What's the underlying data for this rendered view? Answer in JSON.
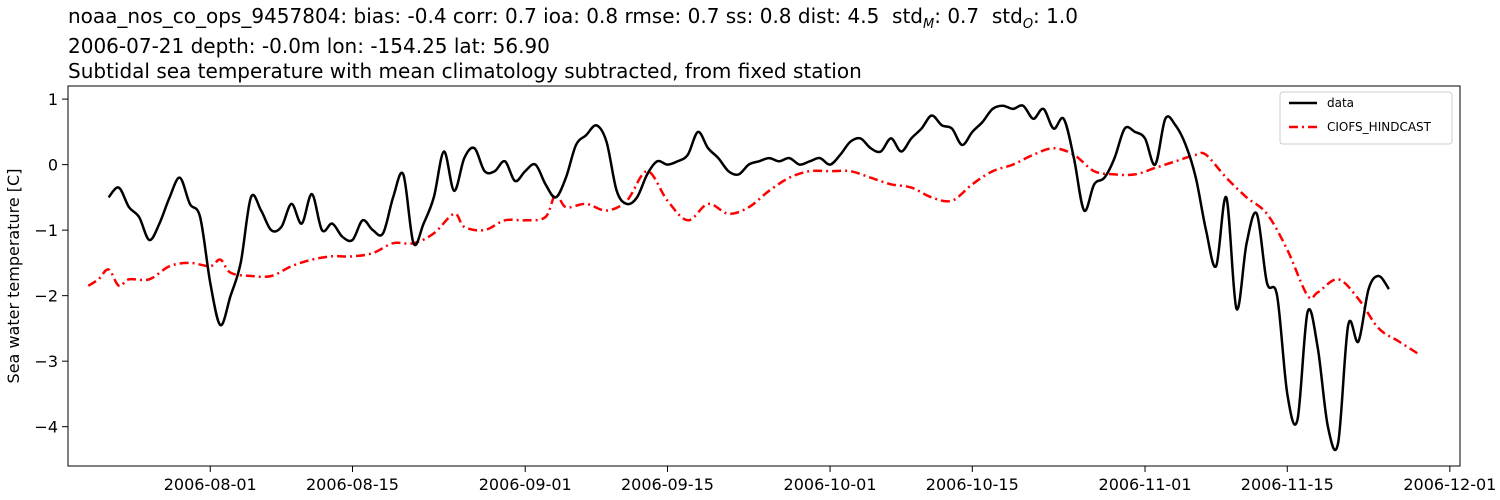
{
  "chart_data": {
    "type": "line",
    "title_lines": [
      "noaa_nos_co_ops_9457804: bias: -0.4  corr: 0.7  ioa: 0.8  rmse: 0.7  ss: 0.8  dist: 4.5",
      "2006-07-21 depth: -0.0m lon: -154.25 lat: 56.90",
      "Subtidal sea temperature with mean climatology subtracted, from fixed station"
    ],
    "title_std_m": {
      "prefix": "std",
      "sub": "M",
      "value": ": 0.7"
    },
    "title_std_o": {
      "prefix": "std",
      "sub": "O",
      "value": ": 1.0"
    },
    "xlabel": "",
    "ylabel": "Sea water temperature [C]",
    "xlim": [
      "2006-07-18",
      "2006-12-02"
    ],
    "ylim": [
      -4.6,
      1.2
    ],
    "x_ticks": [
      "2006-08-01",
      "2006-08-15",
      "2006-09-01",
      "2006-09-15",
      "2006-10-01",
      "2006-10-15",
      "2006-11-01",
      "2006-11-15",
      "2006-12-01"
    ],
    "y_ticks": [
      1,
      0,
      -1,
      -2,
      -3,
      -4
    ],
    "y_tick_labels": [
      "1",
      "0",
      "−1",
      "−2",
      "−3",
      "−4"
    ],
    "grid": false,
    "legend_position": "top-right",
    "series": [
      {
        "name": "data",
        "color": "#000000",
        "style": "solid",
        "points": [
          [
            "2006-07-22",
            -0.5
          ],
          [
            "2006-07-23",
            -0.35
          ],
          [
            "2006-07-24",
            -0.65
          ],
          [
            "2006-07-25",
            -0.8
          ],
          [
            "2006-07-26",
            -1.15
          ],
          [
            "2006-07-27",
            -0.9
          ],
          [
            "2006-07-28",
            -0.5
          ],
          [
            "2006-07-29",
            -0.2
          ],
          [
            "2006-07-30",
            -0.6
          ],
          [
            "2006-07-31",
            -0.8
          ],
          [
            "2006-08-01",
            -1.8
          ],
          [
            "2006-08-02",
            -2.45
          ],
          [
            "2006-08-03",
            -2.0
          ],
          [
            "2006-08-04",
            -1.5
          ],
          [
            "2006-08-05",
            -0.5
          ],
          [
            "2006-08-06",
            -0.7
          ],
          [
            "2006-08-07",
            -1.0
          ],
          [
            "2006-08-08",
            -0.95
          ],
          [
            "2006-08-09",
            -0.6
          ],
          [
            "2006-08-10",
            -0.9
          ],
          [
            "2006-08-11",
            -0.45
          ],
          [
            "2006-08-12",
            -1.0
          ],
          [
            "2006-08-13",
            -0.9
          ],
          [
            "2006-08-14",
            -1.1
          ],
          [
            "2006-08-15",
            -1.15
          ],
          [
            "2006-08-16",
            -0.85
          ],
          [
            "2006-08-17",
            -1.0
          ],
          [
            "2006-08-18",
            -1.05
          ],
          [
            "2006-08-19",
            -0.5
          ],
          [
            "2006-08-20",
            -0.15
          ],
          [
            "2006-08-21",
            -1.2
          ],
          [
            "2006-08-22",
            -0.9
          ],
          [
            "2006-08-23",
            -0.5
          ],
          [
            "2006-08-24",
            0.2
          ],
          [
            "2006-08-25",
            -0.4
          ],
          [
            "2006-08-26",
            0.1
          ],
          [
            "2006-08-27",
            0.25
          ],
          [
            "2006-08-28",
            -0.1
          ],
          [
            "2006-08-29",
            -0.1
          ],
          [
            "2006-08-30",
            0.05
          ],
          [
            "2006-08-31",
            -0.25
          ],
          [
            "2006-09-01",
            -0.1
          ],
          [
            "2006-09-02",
            0.0
          ],
          [
            "2006-09-03",
            -0.3
          ],
          [
            "2006-09-04",
            -0.5
          ],
          [
            "2006-09-05",
            -0.2
          ],
          [
            "2006-09-06",
            0.3
          ],
          [
            "2006-09-07",
            0.45
          ],
          [
            "2006-09-08",
            0.6
          ],
          [
            "2006-09-09",
            0.35
          ],
          [
            "2006-09-10",
            -0.4
          ],
          [
            "2006-09-11",
            -0.6
          ],
          [
            "2006-09-12",
            -0.5
          ],
          [
            "2006-09-13",
            -0.15
          ],
          [
            "2006-09-14",
            0.05
          ],
          [
            "2006-09-15",
            0.0
          ],
          [
            "2006-09-16",
            0.05
          ],
          [
            "2006-09-17",
            0.15
          ],
          [
            "2006-09-18",
            0.5
          ],
          [
            "2006-09-19",
            0.25
          ],
          [
            "2006-09-20",
            0.1
          ],
          [
            "2006-09-21",
            -0.1
          ],
          [
            "2006-09-22",
            -0.15
          ],
          [
            "2006-09-23",
            0.0
          ],
          [
            "2006-09-24",
            0.05
          ],
          [
            "2006-09-25",
            0.1
          ],
          [
            "2006-09-26",
            0.05
          ],
          [
            "2006-09-27",
            0.1
          ],
          [
            "2006-09-28",
            0.0
          ],
          [
            "2006-09-29",
            0.05
          ],
          [
            "2006-09-30",
            0.1
          ],
          [
            "2006-10-01",
            0.0
          ],
          [
            "2006-10-02",
            0.15
          ],
          [
            "2006-10-03",
            0.35
          ],
          [
            "2006-10-04",
            0.4
          ],
          [
            "2006-10-05",
            0.25
          ],
          [
            "2006-10-06",
            0.2
          ],
          [
            "2006-10-07",
            0.4
          ],
          [
            "2006-10-08",
            0.2
          ],
          [
            "2006-10-09",
            0.4
          ],
          [
            "2006-10-10",
            0.55
          ],
          [
            "2006-10-11",
            0.75
          ],
          [
            "2006-10-12",
            0.6
          ],
          [
            "2006-10-13",
            0.55
          ],
          [
            "2006-10-14",
            0.3
          ],
          [
            "2006-10-15",
            0.5
          ],
          [
            "2006-10-16",
            0.65
          ],
          [
            "2006-10-17",
            0.85
          ],
          [
            "2006-10-18",
            0.9
          ],
          [
            "2006-10-19",
            0.85
          ],
          [
            "2006-10-20",
            0.9
          ],
          [
            "2006-10-21",
            0.7
          ],
          [
            "2006-10-22",
            0.85
          ],
          [
            "2006-10-23",
            0.55
          ],
          [
            "2006-10-24",
            0.7
          ],
          [
            "2006-10-25",
            0.1
          ],
          [
            "2006-10-26",
            -0.7
          ],
          [
            "2006-10-27",
            -0.3
          ],
          [
            "2006-10-28",
            -0.2
          ],
          [
            "2006-10-29",
            0.1
          ],
          [
            "2006-10-30",
            0.55
          ],
          [
            "2006-10-31",
            0.5
          ],
          [
            "2006-11-01",
            0.4
          ],
          [
            "2006-11-02",
            0.0
          ],
          [
            "2006-11-03",
            0.7
          ],
          [
            "2006-11-04",
            0.6
          ],
          [
            "2006-11-05",
            0.3
          ],
          [
            "2006-11-06",
            -0.2
          ],
          [
            "2006-11-07",
            -1.0
          ],
          [
            "2006-11-08",
            -1.55
          ],
          [
            "2006-11-09",
            -0.5
          ],
          [
            "2006-11-10",
            -2.2
          ],
          [
            "2006-11-11",
            -1.2
          ],
          [
            "2006-11-12",
            -0.75
          ],
          [
            "2006-11-13",
            -1.8
          ],
          [
            "2006-11-14",
            -2.0
          ],
          [
            "2006-11-15",
            -3.5
          ],
          [
            "2006-11-16",
            -3.9
          ],
          [
            "2006-11-17",
            -2.25
          ],
          [
            "2006-11-18",
            -2.8
          ],
          [
            "2006-11-19",
            -4.0
          ],
          [
            "2006-11-20",
            -4.25
          ],
          [
            "2006-11-21",
            -2.45
          ],
          [
            "2006-11-22",
            -2.7
          ],
          [
            "2006-11-23",
            -1.9
          ],
          [
            "2006-11-24",
            -1.7
          ],
          [
            "2006-11-25",
            -1.9
          ]
        ]
      },
      {
        "name": "CIOFS_HINDCAST",
        "color": "#ff0000",
        "style": "dashdot",
        "points": [
          [
            "2006-07-20",
            -1.85
          ],
          [
            "2006-07-21",
            -1.75
          ],
          [
            "2006-07-22",
            -1.6
          ],
          [
            "2006-07-23",
            -1.85
          ],
          [
            "2006-07-24",
            -1.75
          ],
          [
            "2006-07-26",
            -1.75
          ],
          [
            "2006-07-28",
            -1.55
          ],
          [
            "2006-07-30",
            -1.5
          ],
          [
            "2006-08-01",
            -1.55
          ],
          [
            "2006-08-02",
            -1.45
          ],
          [
            "2006-08-03",
            -1.65
          ],
          [
            "2006-08-05",
            -1.7
          ],
          [
            "2006-08-07",
            -1.7
          ],
          [
            "2006-08-09",
            -1.55
          ],
          [
            "2006-08-11",
            -1.45
          ],
          [
            "2006-08-13",
            -1.4
          ],
          [
            "2006-08-15",
            -1.4
          ],
          [
            "2006-08-17",
            -1.35
          ],
          [
            "2006-08-19",
            -1.2
          ],
          [
            "2006-08-21",
            -1.2
          ],
          [
            "2006-08-23",
            -1.05
          ],
          [
            "2006-08-25",
            -0.75
          ],
          [
            "2006-08-26",
            -0.95
          ],
          [
            "2006-08-28",
            -1.0
          ],
          [
            "2006-08-30",
            -0.85
          ],
          [
            "2006-09-01",
            -0.85
          ],
          [
            "2006-09-03",
            -0.8
          ],
          [
            "2006-09-04",
            -0.45
          ],
          [
            "2006-09-05",
            -0.65
          ],
          [
            "2006-09-07",
            -0.6
          ],
          [
            "2006-09-09",
            -0.7
          ],
          [
            "2006-09-11",
            -0.55
          ],
          [
            "2006-09-13",
            -0.1
          ],
          [
            "2006-09-15",
            -0.55
          ],
          [
            "2006-09-17",
            -0.85
          ],
          [
            "2006-09-19",
            -0.6
          ],
          [
            "2006-09-21",
            -0.75
          ],
          [
            "2006-09-23",
            -0.65
          ],
          [
            "2006-09-25",
            -0.4
          ],
          [
            "2006-09-27",
            -0.2
          ],
          [
            "2006-09-29",
            -0.1
          ],
          [
            "2006-10-01",
            -0.1
          ],
          [
            "2006-10-03",
            -0.1
          ],
          [
            "2006-10-05",
            -0.2
          ],
          [
            "2006-10-07",
            -0.3
          ],
          [
            "2006-10-09",
            -0.35
          ],
          [
            "2006-10-11",
            -0.5
          ],
          [
            "2006-10-13",
            -0.55
          ],
          [
            "2006-10-15",
            -0.3
          ],
          [
            "2006-10-17",
            -0.1
          ],
          [
            "2006-10-19",
            0.0
          ],
          [
            "2006-10-21",
            0.15
          ],
          [
            "2006-10-23",
            0.25
          ],
          [
            "2006-10-25",
            0.15
          ],
          [
            "2006-10-27",
            -0.1
          ],
          [
            "2006-10-29",
            -0.15
          ],
          [
            "2006-10-31",
            -0.15
          ],
          [
            "2006-11-02",
            -0.05
          ],
          [
            "2006-11-04",
            0.05
          ],
          [
            "2006-11-06",
            0.15
          ],
          [
            "2006-11-07",
            0.15
          ],
          [
            "2006-11-09",
            -0.2
          ],
          [
            "2006-11-11",
            -0.5
          ],
          [
            "2006-11-13",
            -0.75
          ],
          [
            "2006-11-15",
            -1.3
          ],
          [
            "2006-11-17",
            -2.0
          ],
          [
            "2006-11-18",
            -1.95
          ],
          [
            "2006-11-20",
            -1.75
          ],
          [
            "2006-11-22",
            -2.05
          ],
          [
            "2006-11-24",
            -2.5
          ],
          [
            "2006-11-26",
            -2.7
          ],
          [
            "2006-11-28",
            -2.9
          ]
        ]
      }
    ]
  }
}
